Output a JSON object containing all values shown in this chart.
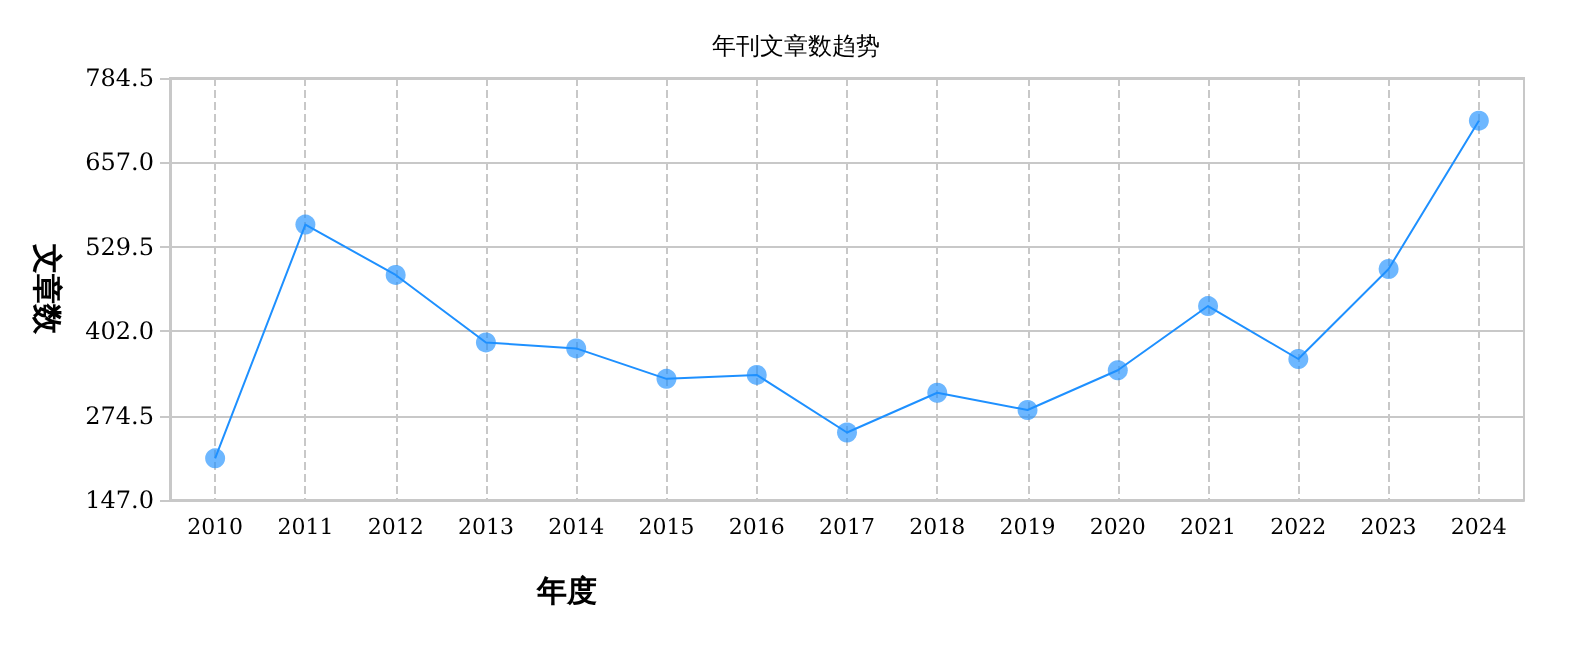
{
  "chart_data": {
    "type": "line",
    "title": "年刊文章数趋势",
    "xlabel": "年度",
    "ylabel": "文章数",
    "categories": [
      "2010",
      "2011",
      "2012",
      "2013",
      "2014",
      "2015",
      "2016",
      "2017",
      "2018",
      "2019",
      "2020",
      "2021",
      "2022",
      "2023",
      "2024"
    ],
    "series": [
      {
        "color": "#1e90ff",
        "values": [
          210,
          563,
          487,
          385,
          376,
          330,
          336,
          249,
          309,
          283,
          343,
          440,
          360,
          496,
          720
        ]
      }
    ],
    "ylim": [
      147,
      784.5
    ],
    "yticks": [
      {
        "value": 147,
        "label": "147.0"
      },
      {
        "value": 274.5,
        "label": "274.5"
      },
      {
        "value": 402,
        "label": "402.0"
      },
      {
        "value": 529.5,
        "label": "529.5"
      },
      {
        "value": 657,
        "label": "657.0"
      },
      {
        "value": 784.5,
        "label": "784.5"
      }
    ],
    "grid": true,
    "marker": "circle",
    "line_style": "solid"
  }
}
